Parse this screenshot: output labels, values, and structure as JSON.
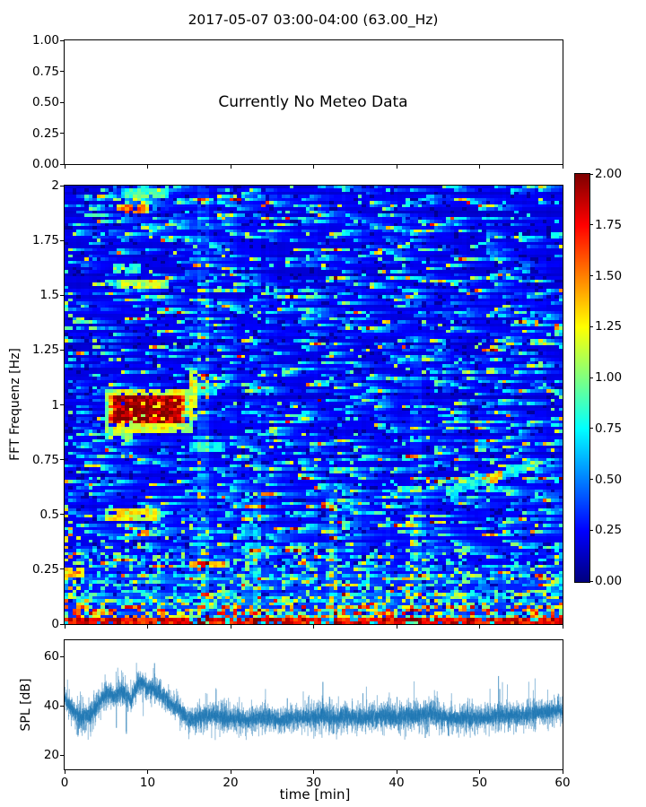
{
  "title": "2017-05-07 03:00-04:00 (63.00_Hz)",
  "chart_data": [
    {
      "type": "table",
      "panel": "meteo",
      "annotation": "Currently No Meteo Data",
      "ylim": [
        0.0,
        1.0
      ],
      "yticks": [
        1.0,
        0.75,
        0.5,
        0.25,
        0.0
      ],
      "ytick_labels": [
        "1.00",
        "0.75",
        "0.50",
        "0.25",
        "0.00"
      ],
      "xlim": [
        0,
        60
      ],
      "xticks": [
        0,
        10,
        20,
        30,
        40,
        50,
        60
      ],
      "xtick_labels_shown": false,
      "note": "empty axes, no meteo data available"
    },
    {
      "type": "heatmap",
      "panel": "spectrogram",
      "ylabel": "FFT Frequenz [Hz]",
      "xlim": [
        0,
        60
      ],
      "ylim": [
        0,
        2
      ],
      "clim": [
        0.0,
        2.0
      ],
      "colormap": "jet",
      "yticks": [
        2,
        1.75,
        1.5,
        1.25,
        1,
        0.75,
        0.5,
        0.25,
        0
      ],
      "ytick_labels": [
        "2",
        "1.75",
        "1.5",
        "1.25",
        "1",
        "0.75",
        "0.5",
        "0.25",
        "0"
      ],
      "xticks": [
        0,
        10,
        20,
        30,
        40,
        50,
        60
      ],
      "xtick_labels_shown": false,
      "colorbar_ticks": [
        2.0,
        1.75,
        1.5,
        1.25,
        1.0,
        0.75,
        0.5,
        0.25,
        0.0
      ],
      "colorbar_tick_labels": [
        "2.00",
        "1.75",
        "1.50",
        "1.25",
        "1.00",
        "0.75",
        "0.50",
        "0.25",
        "0.00"
      ],
      "background": {
        "seed": 20170507,
        "cols": 124,
        "rows": 140,
        "base": 0.17,
        "lowfreq_gain": 0.17,
        "lowfreq_scale": 0.35,
        "streak_p": 0.1,
        "dark_p": 0.08,
        "bright_p": 0.012,
        "hot_bands": [
          {
            "fmax": 0.035,
            "solid": [
              1.55,
              2.0
            ],
            "gap_p": 0.13,
            "gap": [
              0.35,
              0.85
            ]
          },
          {
            "fmax": 0.08,
            "p": 0.5,
            "amp": [
              0.75,
              1.85
            ]
          },
          {
            "fmax": 0.13,
            "p": 0.32,
            "amp": [
              0.5,
              1.4
            ]
          },
          {
            "fmax": 0.35,
            "p": 0.14,
            "amp": [
              0.4,
              1.1
            ]
          }
        ]
      },
      "features": [
        {
          "kind": "box",
          "label": "tremor-core",
          "t": [
            5.3,
            14.6
          ],
          "f": [
            0.92,
            1.04
          ],
          "amp": 2.0
        },
        {
          "kind": "box",
          "label": "tremor-fringe",
          "t": [
            4.6,
            15.3
          ],
          "f": [
            0.875,
            1.075
          ],
          "amp": 1.25
        },
        {
          "kind": "box",
          "label": "tremor-tail-low",
          "t": [
            5.0,
            8.2
          ],
          "f": [
            0.84,
            0.9
          ],
          "amp": 1.1
        },
        {
          "kind": "box",
          "label": "tremor-hook-up",
          "t": [
            14.8,
            15.8
          ],
          "f": [
            0.93,
            1.16
          ],
          "amp": 1.3
        },
        {
          "kind": "box",
          "label": "streak-1.9Hz",
          "t": [
            6.3,
            10.1
          ],
          "f": [
            1.875,
            1.915
          ],
          "amp": 1.55
        },
        {
          "kind": "box",
          "label": "streak-1.97Hz",
          "t": [
            7.0,
            12.8
          ],
          "f": [
            1.95,
            1.985
          ],
          "amp": 0.95
        },
        {
          "kind": "box",
          "label": "streak-1.55Hz",
          "t": [
            6.4,
            12.4
          ],
          "f": [
            1.525,
            1.575
          ],
          "amp": 1.2
        },
        {
          "kind": "box",
          "label": "streak-1.62Hz",
          "t": [
            5.7,
            9.2
          ],
          "f": [
            1.6,
            1.64
          ],
          "amp": 0.85
        },
        {
          "kind": "box",
          "label": "streak-0.5Hz",
          "t": [
            4.8,
            11.5
          ],
          "f": [
            0.47,
            0.53
          ],
          "amp": 1.3
        },
        {
          "kind": "box",
          "label": "arc-1.07Hz",
          "t": [
            15.6,
            18.6
          ],
          "f": [
            1.045,
            1.1
          ],
          "amp": 0.7
        },
        {
          "kind": "box",
          "label": "streak-0.81Hz",
          "t": [
            15.2,
            19.2
          ],
          "f": [
            0.79,
            0.83
          ],
          "amp": 0.75
        },
        {
          "kind": "box",
          "label": "streak-0.27Hz",
          "t": [
            15.0,
            19.6
          ],
          "f": [
            0.252,
            0.288
          ],
          "amp": 1.6
        },
        {
          "kind": "box",
          "label": "streak-0.24-left",
          "t": [
            0.0,
            2.3
          ],
          "f": [
            0.215,
            0.26
          ],
          "amp": 1.45
        },
        {
          "kind": "diag",
          "label": "rising-streak",
          "t": [
            46.0,
            56.5
          ],
          "f": [
            0.6,
            0.725
          ],
          "w": 0.022,
          "amp": 0.8,
          "hot_t": [
            50.8,
            52.8
          ],
          "hot_amp": 1.35
        },
        {
          "kind": "vband",
          "label": "band-16.5min",
          "t": [
            16.2,
            17.4
          ],
          "fmax": 2.0,
          "boost": 0.22
        },
        {
          "kind": "vband",
          "label": "band-23min",
          "t": [
            22.9,
            23.7
          ],
          "fmax": 0.55,
          "boost": 0.3
        },
        {
          "kind": "vband",
          "label": "band-32min",
          "t": [
            31.9,
            32.8
          ],
          "fmax": 0.6,
          "boost": 0.3
        },
        {
          "kind": "vband",
          "label": "band-42min",
          "t": [
            41.8,
            43.2
          ],
          "fmax": 1.2,
          "boost": 0.18
        },
        {
          "kind": "speckle",
          "label": "left-edge-hot",
          "t": [
            0,
            1.2
          ],
          "f": [
            0.1,
            0.55
          ],
          "p": 0.3,
          "amp": [
            0.8,
            1.6
          ]
        },
        {
          "kind": "speckle",
          "label": "left-edge-mid",
          "t": [
            0,
            1.0
          ],
          "f": [
            1.3,
            1.65
          ],
          "p": 0.22,
          "amp": [
            0.6,
            1.3
          ]
        },
        {
          "kind": "speckle",
          "label": "low-band-late",
          "t": [
            27.5,
            50
          ],
          "f": [
            0.1,
            0.32
          ],
          "p": 0.1,
          "amp": [
            0.6,
            1.4
          ]
        },
        {
          "kind": "speckle",
          "label": "low-band-early",
          "t": [
            0,
            18
          ],
          "f": [
            0.12,
            0.5
          ],
          "p": 0.1,
          "amp": [
            0.5,
            1.2
          ]
        }
      ]
    },
    {
      "type": "line",
      "panel": "spl",
      "ylabel": "SPL [dB]",
      "xlabel": "time [min]",
      "line_color": "#1f77b4",
      "xlim": [
        0,
        60
      ],
      "ylim": [
        14.2,
        66.55
      ],
      "yticks": [
        60,
        40,
        20
      ],
      "ytick_labels": [
        "60",
        "40",
        "20"
      ],
      "xticks": [
        0,
        10,
        20,
        30,
        40,
        50,
        60
      ],
      "xtick_labels": [
        "0",
        "10",
        "20",
        "30",
        "40",
        "50",
        "60"
      ],
      "x_minutes": [
        0,
        1,
        2,
        3,
        4,
        5,
        6,
        7,
        8,
        9,
        10,
        11,
        12,
        13,
        14,
        15,
        16,
        17,
        18,
        19,
        20,
        21,
        22,
        23,
        24,
        25,
        26,
        27,
        28,
        29,
        30,
        31,
        32,
        33,
        34,
        35,
        36,
        37,
        38,
        39,
        40,
        41,
        42,
        43,
        44,
        45,
        46,
        47,
        48,
        49,
        50,
        51,
        52,
        53,
        54,
        55,
        56,
        57,
        58,
        59,
        60
      ],
      "mean_db": [
        43,
        38,
        35,
        36,
        40,
        45,
        44,
        46,
        42,
        50,
        47,
        46,
        44,
        40,
        38,
        34,
        35,
        36,
        36,
        35,
        35,
        35,
        34,
        35,
        35,
        35,
        34,
        35,
        35,
        35,
        35,
        36,
        35,
        35,
        36,
        35,
        35,
        35,
        36,
        36,
        35,
        36,
        36,
        36,
        37,
        36,
        35,
        35,
        35,
        35,
        35,
        35,
        36,
        36,
        36,
        36,
        37,
        37,
        37,
        38,
        38
      ],
      "max_db": [
        52,
        52,
        58,
        52,
        56,
        58,
        54,
        64,
        52,
        63,
        58,
        60,
        57,
        53,
        53,
        44,
        48,
        48,
        46,
        57,
        45,
        50,
        45,
        46,
        53,
        47,
        45,
        46,
        47,
        46,
        52,
        55,
        50,
        48,
        52,
        45,
        48,
        50,
        55,
        57,
        50,
        55,
        55,
        50,
        60,
        55,
        48,
        45,
        48,
        53,
        45,
        48,
        55,
        48,
        50,
        48,
        57,
        50,
        48,
        48,
        46
      ],
      "min_db": [
        36,
        28,
        22,
        25,
        28,
        24,
        30,
        23,
        24,
        30,
        31,
        32,
        28,
        26,
        24,
        25,
        26,
        28,
        26,
        26,
        27,
        27,
        26,
        26,
        26,
        26,
        27,
        26,
        27,
        27,
        26,
        27,
        26,
        26,
        26,
        24,
        26,
        26,
        26,
        24,
        26,
        26,
        26,
        27,
        22,
        26,
        27,
        27,
        27,
        26,
        24,
        22,
        27,
        27,
        27,
        27,
        27,
        28,
        28,
        30,
        32
      ]
    }
  ]
}
